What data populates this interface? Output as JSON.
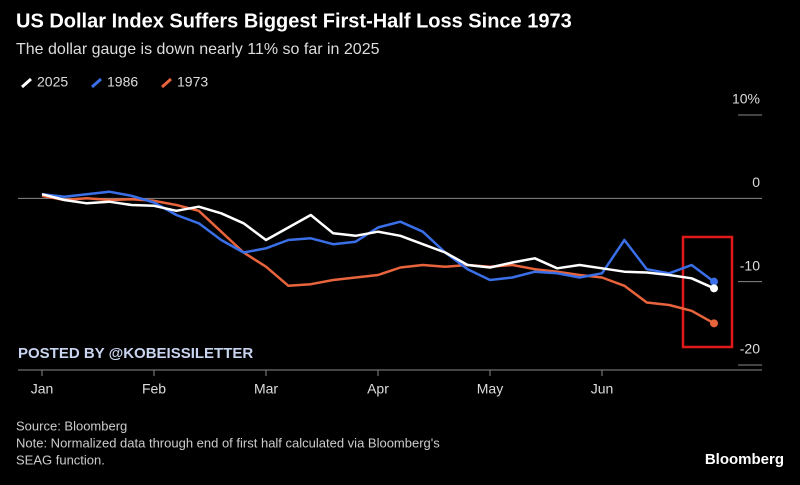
{
  "chart_data": {
    "type": "line",
    "title": "US Dollar Index Suffers Biggest First-Half Loss Since 1973",
    "subtitle": "The dollar gauge is down nearly 11% so far in 2025",
    "categories": [
      "Jan",
      null,
      null,
      null,
      null,
      "Feb",
      null,
      null,
      null,
      null,
      "Mar",
      null,
      null,
      null,
      null,
      "Apr",
      null,
      null,
      null,
      null,
      "May",
      null,
      null,
      null,
      null,
      "Jun",
      null,
      null,
      null,
      null,
      null
    ],
    "series": [
      {
        "name": "2025",
        "color": "#ffffff",
        "values": [
          0.5,
          -0.2,
          -0.6,
          -0.4,
          -0.8,
          -0.9,
          -1.5,
          -1.0,
          -1.8,
          -3.0,
          -5.0,
          -3.5,
          -2.0,
          -4.2,
          -4.5,
          -4.0,
          -4.5,
          -5.5,
          -6.5,
          -8.0,
          -8.3,
          -7.7,
          -7.2,
          -8.4,
          -8.0,
          -8.4,
          -8.8,
          -8.9,
          -9.2,
          -9.6,
          -10.8
        ]
      },
      {
        "name": "1986",
        "color": "#3a6fe8",
        "values": [
          0.5,
          0.2,
          0.5,
          0.8,
          0.3,
          -0.5,
          -2.0,
          -3.0,
          -5.0,
          -6.5,
          -6.0,
          -5.0,
          -4.8,
          -5.5,
          -5.2,
          -3.5,
          -2.8,
          -4.0,
          -6.5,
          -8.5,
          -9.8,
          -9.5,
          -8.8,
          -9.0,
          -9.5,
          -9.0,
          -5.0,
          -8.5,
          -9.0,
          -8.0,
          -10.0
        ]
      },
      {
        "name": "1973",
        "color": "#e8643c",
        "values": [
          0.3,
          -0.2,
          0,
          -0.2,
          -0.1,
          -0.3,
          -0.8,
          -1.5,
          -4.0,
          -6.5,
          -8.2,
          -10.5,
          -10.3,
          -9.8,
          -9.5,
          -9.2,
          -8.3,
          -8.0,
          -8.2,
          -8.0,
          -8.2,
          -8.0,
          -8.5,
          -8.8,
          -9.2,
          -9.5,
          -10.5,
          -12.5,
          -12.8,
          -13.5,
          -15.0
        ]
      }
    ],
    "ylim": [
      -20,
      10
    ],
    "yticks": [
      {
        "value": 10,
        "label": "10%"
      },
      0,
      -10,
      -20
    ],
    "watermark": "POSTED BY @KOBEISSILETTER",
    "source": "Source: Bloomberg",
    "note_lines": [
      "Note: Normalized data through end of first half calculated via Bloomberg's",
      "SEAG function."
    ],
    "brand": "Bloomberg"
  }
}
